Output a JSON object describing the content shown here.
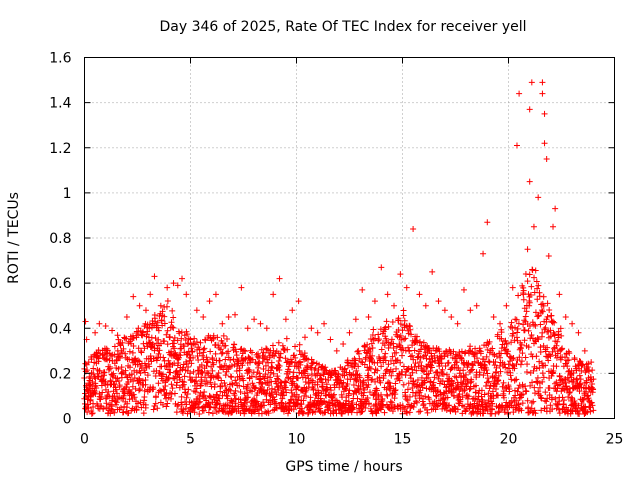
{
  "chart_data": {
    "type": "scatter",
    "title": "Day 346 of 2025, Rate Of TEC Index for receiver yell",
    "xlabel": "GPS time / hours",
    "ylabel": "ROTI / TECUs",
    "xlim": [
      0,
      25
    ],
    "ylim": [
      0,
      1.6
    ],
    "xticks": [
      0,
      5,
      10,
      15,
      20,
      25
    ],
    "xtick_labels": [
      "0",
      "5",
      "10",
      "15",
      "20",
      "25"
    ],
    "yticks": [
      0,
      0.2,
      0.4,
      0.6,
      0.8,
      1.0,
      1.2,
      1.4,
      1.6
    ],
    "ytick_labels": [
      "0",
      "0.2",
      "0.4",
      "0.6",
      "0.8",
      "1",
      "1.2",
      "1.4",
      "1.6"
    ],
    "grid": true,
    "marker": "+",
    "marker_color": "#ff0000",
    "series": [
      {
        "name": "ROTI",
        "points": [
          [
            0.05,
            0.43
          ],
          [
            0.1,
            0.35
          ],
          [
            0.2,
            0.25
          ],
          [
            0.3,
            0.15
          ],
          [
            0.5,
            0.38
          ],
          [
            0.7,
            0.42
          ],
          [
            1.0,
            0.41
          ],
          [
            1.3,
            0.39
          ],
          [
            1.6,
            0.22
          ],
          [
            2.0,
            0.45
          ],
          [
            2.3,
            0.54
          ],
          [
            2.6,
            0.5
          ],
          [
            2.9,
            0.48
          ],
          [
            3.1,
            0.55
          ],
          [
            3.3,
            0.63
          ],
          [
            3.6,
            0.5
          ],
          [
            3.9,
            0.58
          ],
          [
            4.2,
            0.6
          ],
          [
            4.4,
            0.59
          ],
          [
            4.6,
            0.62
          ],
          [
            4.8,
            0.55
          ],
          [
            5.0,
            0.35
          ],
          [
            5.3,
            0.48
          ],
          [
            5.6,
            0.45
          ],
          [
            5.9,
            0.52
          ],
          [
            6.2,
            0.55
          ],
          [
            6.5,
            0.42
          ],
          [
            6.8,
            0.45
          ],
          [
            7.1,
            0.46
          ],
          [
            7.4,
            0.58
          ],
          [
            7.7,
            0.4
          ],
          [
            8.0,
            0.44
          ],
          [
            8.3,
            0.42
          ],
          [
            8.6,
            0.4
          ],
          [
            8.9,
            0.55
          ],
          [
            9.2,
            0.62
          ],
          [
            9.5,
            0.44
          ],
          [
            9.8,
            0.48
          ],
          [
            10.1,
            0.52
          ],
          [
            10.4,
            0.36
          ],
          [
            10.7,
            0.4
          ],
          [
            11.0,
            0.38
          ],
          [
            11.3,
            0.42
          ],
          [
            11.6,
            0.35
          ],
          [
            11.9,
            0.3
          ],
          [
            12.2,
            0.33
          ],
          [
            12.5,
            0.38
          ],
          [
            12.8,
            0.44
          ],
          [
            13.1,
            0.57
          ],
          [
            13.4,
            0.45
          ],
          [
            13.7,
            0.52
          ],
          [
            14.0,
            0.67
          ],
          [
            14.3,
            0.55
          ],
          [
            14.6,
            0.5
          ],
          [
            14.9,
            0.64
          ],
          [
            15.2,
            0.58
          ],
          [
            15.5,
            0.84
          ],
          [
            15.8,
            0.55
          ],
          [
            16.1,
            0.5
          ],
          [
            16.4,
            0.65
          ],
          [
            16.7,
            0.52
          ],
          [
            17.0,
            0.48
          ],
          [
            17.3,
            0.45
          ],
          [
            17.6,
            0.42
          ],
          [
            17.9,
            0.57
          ],
          [
            18.2,
            0.48
          ],
          [
            18.5,
            0.5
          ],
          [
            18.8,
            0.73
          ],
          [
            19.0,
            0.87
          ],
          [
            19.3,
            0.45
          ],
          [
            19.6,
            0.42
          ],
          [
            19.9,
            0.5
          ],
          [
            20.2,
            0.58
          ],
          [
            20.4,
            1.21
          ],
          [
            20.5,
            1.44
          ],
          [
            20.7,
            0.55
          ],
          [
            20.9,
            0.75
          ],
          [
            21.0,
            1.37
          ],
          [
            21.0,
            1.05
          ],
          [
            21.1,
            1.49
          ],
          [
            21.2,
            0.85
          ],
          [
            21.4,
            0.98
          ],
          [
            21.6,
            1.49
          ],
          [
            21.6,
            1.44
          ],
          [
            21.7,
            1.35
          ],
          [
            21.7,
            1.22
          ],
          [
            21.8,
            1.15
          ],
          [
            21.9,
            0.72
          ],
          [
            22.1,
            0.85
          ],
          [
            22.2,
            0.93
          ],
          [
            22.4,
            0.55
          ],
          [
            22.7,
            0.45
          ],
          [
            23.0,
            0.42
          ],
          [
            23.3,
            0.38
          ],
          [
            23.6,
            0.3
          ],
          [
            23.9,
            0.25
          ]
        ]
      }
    ],
    "noise_envelope": {
      "x_start": 0.0,
      "x_end": 24.0,
      "x_step": 0.025,
      "baseline": [
        [
          0,
          0.12
        ],
        [
          1,
          0.15
        ],
        [
          2,
          0.18
        ],
        [
          3,
          0.22
        ],
        [
          4,
          0.25
        ],
        [
          5,
          0.15
        ],
        [
          6,
          0.16
        ],
        [
          7,
          0.14
        ],
        [
          8,
          0.12
        ],
        [
          9,
          0.14
        ],
        [
          10,
          0.13
        ],
        [
          11,
          0.1
        ],
        [
          12,
          0.09
        ],
        [
          13,
          0.12
        ],
        [
          14,
          0.18
        ],
        [
          15,
          0.2
        ],
        [
          16,
          0.14
        ],
        [
          17,
          0.13
        ],
        [
          18,
          0.12
        ],
        [
          19,
          0.14
        ],
        [
          20,
          0.18
        ],
        [
          21,
          0.3
        ],
        [
          22,
          0.2
        ],
        [
          23,
          0.12
        ],
        [
          24,
          0.1
        ]
      ],
      "spread": [
        [
          0,
          0.18
        ],
        [
          1,
          0.2
        ],
        [
          2,
          0.22
        ],
        [
          3,
          0.25
        ],
        [
          4,
          0.3
        ],
        [
          5,
          0.22
        ],
        [
          6,
          0.24
        ],
        [
          7,
          0.22
        ],
        [
          8,
          0.2
        ],
        [
          9,
          0.22
        ],
        [
          10,
          0.22
        ],
        [
          11,
          0.16
        ],
        [
          12,
          0.14
        ],
        [
          13,
          0.2
        ],
        [
          14,
          0.28
        ],
        [
          15,
          0.3
        ],
        [
          16,
          0.22
        ],
        [
          17,
          0.2
        ],
        [
          18,
          0.2
        ],
        [
          19,
          0.22
        ],
        [
          20,
          0.28
        ],
        [
          21,
          0.45
        ],
        [
          22,
          0.3
        ],
        [
          23,
          0.18
        ],
        [
          24,
          0.15
        ]
      ]
    }
  }
}
